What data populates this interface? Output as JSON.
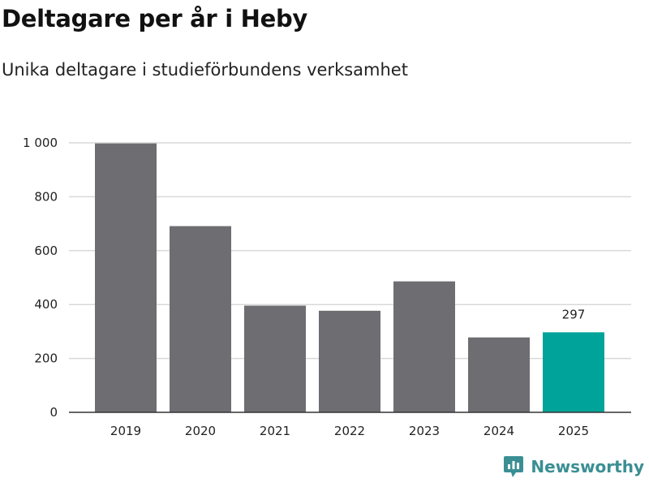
{
  "header": {
    "title": "Deltagare per år i Heby",
    "subtitle": "Unika deltagare i studieförbundens verksamhet"
  },
  "brand": {
    "name": "Newsworthy",
    "icon": "newsworthy-logo-icon",
    "color": "#3a8f93"
  },
  "colors": {
    "bar": "#6e6d72",
    "highlight": "#00a39a",
    "grid": "#d9d9d9",
    "axis": "#333333"
  },
  "chart_data": {
    "type": "bar",
    "title": "Deltagare per år i Heby",
    "subtitle": "Unika deltagare i studieförbundens verksamhet",
    "categories": [
      "2019",
      "2020",
      "2021",
      "2022",
      "2023",
      "2024",
      "2025"
    ],
    "values": [
      998,
      691,
      396,
      377,
      486,
      278,
      297
    ],
    "highlight_index": 6,
    "data_labels": [
      {
        "index": 6,
        "text": "297"
      }
    ],
    "yticks": [
      0,
      200,
      400,
      600,
      800,
      1000
    ],
    "ytick_labels": [
      "0",
      "200",
      "400",
      "600",
      "800",
      "1 000"
    ],
    "ylim": [
      0,
      1000
    ],
    "xlabel": "",
    "ylabel": "",
    "grid": true,
    "legend": "none"
  }
}
